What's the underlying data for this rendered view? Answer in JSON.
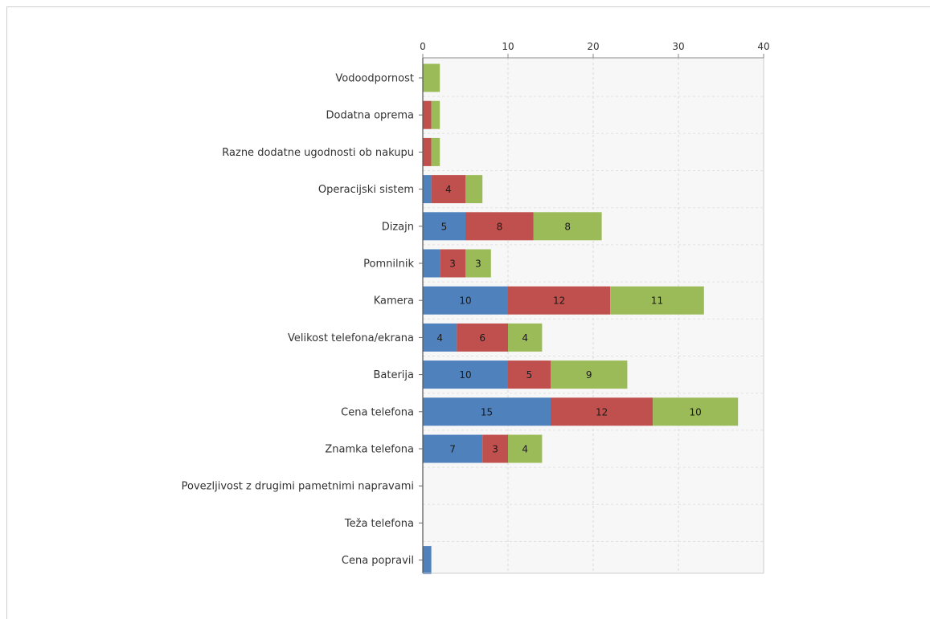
{
  "chart_data": {
    "type": "bar",
    "orientation": "horizontal",
    "stacked": true,
    "xlim": [
      0,
      40
    ],
    "xticks": [
      0,
      10,
      20,
      30,
      40
    ],
    "grid": true,
    "categories": [
      "Vodoodpornost",
      "Dodatna oprema",
      "Razne dodatne ugodnosti ob nakupu",
      "Operacijski sistem",
      "Dizajn",
      "Pomnilnik",
      "Kamera",
      "Velikost telefona/ekrana",
      "Baterija",
      "Cena telefona",
      "Znamka telefona",
      "Povezljivost z drugimi pametnimi napravami",
      "Teža telefona",
      "Cena popravil"
    ],
    "series": [
      {
        "color": "#4f81bd",
        "values": [
          0,
          0,
          0,
          1,
          5,
          2,
          10,
          4,
          10,
          15,
          7,
          0,
          0,
          1
        ]
      },
      {
        "color": "#c0504d",
        "values": [
          0,
          1,
          1,
          4,
          8,
          3,
          12,
          6,
          5,
          12,
          3,
          0,
          0,
          0
        ]
      },
      {
        "color": "#9bbb59",
        "values": [
          2,
          1,
          1,
          2,
          8,
          3,
          11,
          4,
          9,
          10,
          4,
          0,
          0,
          0
        ]
      }
    ]
  }
}
